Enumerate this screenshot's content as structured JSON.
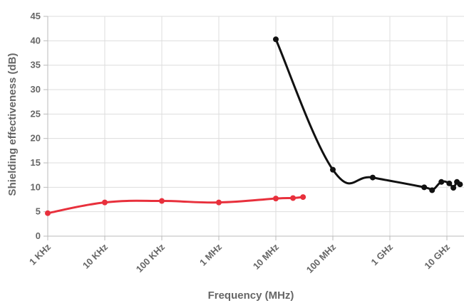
{
  "chart_data": {
    "type": "line",
    "xlabel": "Frequency (MHz)",
    "ylabel": "Shielding effectiveness (dB)",
    "x_scale": "log",
    "x_ticks": [
      "1 KHz",
      "10 KHz",
      "100 KHz",
      "1 MHz",
      "10 MHz",
      "100 MHz",
      "1 GHz",
      "10 GHz"
    ],
    "y_ticks": [
      "0",
      "5",
      "10",
      "15",
      "20",
      "25",
      "30",
      "35",
      "40",
      "45"
    ],
    "ylim": [
      0,
      45
    ],
    "grid": true,
    "series": [
      {
        "color": "#e8303c",
        "points": [
          {
            "x": 0.001,
            "y": 4.7
          },
          {
            "x": 0.01,
            "y": 6.9
          },
          {
            "x": 0.1,
            "y": 7.2
          },
          {
            "x": 1,
            "y": 6.9
          },
          {
            "x": 10,
            "y": 7.7
          },
          {
            "x": 20,
            "y": 7.8
          },
          {
            "x": 30,
            "y": 8.0
          }
        ]
      },
      {
        "color": "#111111",
        "points": [
          {
            "x": 10,
            "y": 40.3
          },
          {
            "x": 100,
            "y": 13.6
          },
          {
            "x": 500,
            "y": 12.0
          },
          {
            "x": 4000,
            "y": 10.0
          },
          {
            "x": 5500,
            "y": 9.4
          },
          {
            "x": 8000,
            "y": 11.1
          },
          {
            "x": 11000,
            "y": 10.8
          },
          {
            "x": 13000,
            "y": 9.9
          },
          {
            "x": 15000,
            "y": 11.1
          },
          {
            "x": 17000,
            "y": 10.6
          }
        ]
      }
    ]
  }
}
